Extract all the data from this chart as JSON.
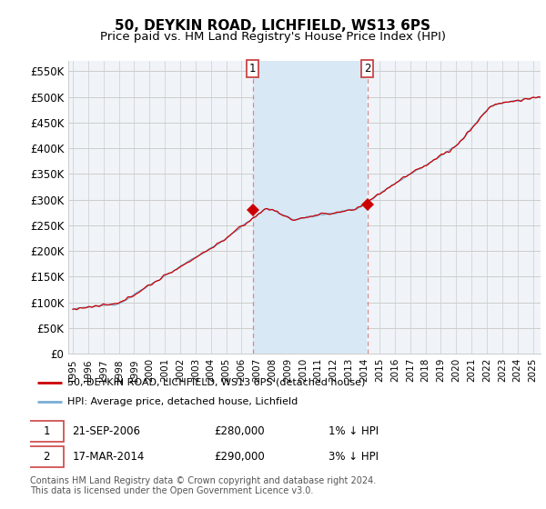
{
  "title": "50, DEYKIN ROAD, LICHFIELD, WS13 6PS",
  "subtitle": "Price paid vs. HM Land Registry's House Price Index (HPI)",
  "ylim": [
    0,
    570000
  ],
  "xlim_start": 1994.7,
  "xlim_end": 2025.5,
  "sale1_x": 2006.72,
  "sale1_y": 280000,
  "sale2_x": 2014.21,
  "sale2_y": 290000,
  "sale_marker_color": "#cc0000",
  "vline_color": "#dd8888",
  "legend_line1": "50, DEYKIN ROAD, LICHFIELD, WS13 6PS (detached house)",
  "legend_line2": "HPI: Average price, detached house, Lichfield",
  "footer": "Contains HM Land Registry data © Crown copyright and database right 2024.\nThis data is licensed under the Open Government Licence v3.0.",
  "red_line_color": "#cc0000",
  "blue_line_color": "#7aadd4",
  "fill_color": "#d8e8f5",
  "plot_bg_color": "#f0f4f8",
  "background_color": "#ffffff",
  "grid_color": "#cccccc",
  "title_fontsize": 11,
  "subtitle_fontsize": 9.5,
  "axis_fontsize": 8.5
}
